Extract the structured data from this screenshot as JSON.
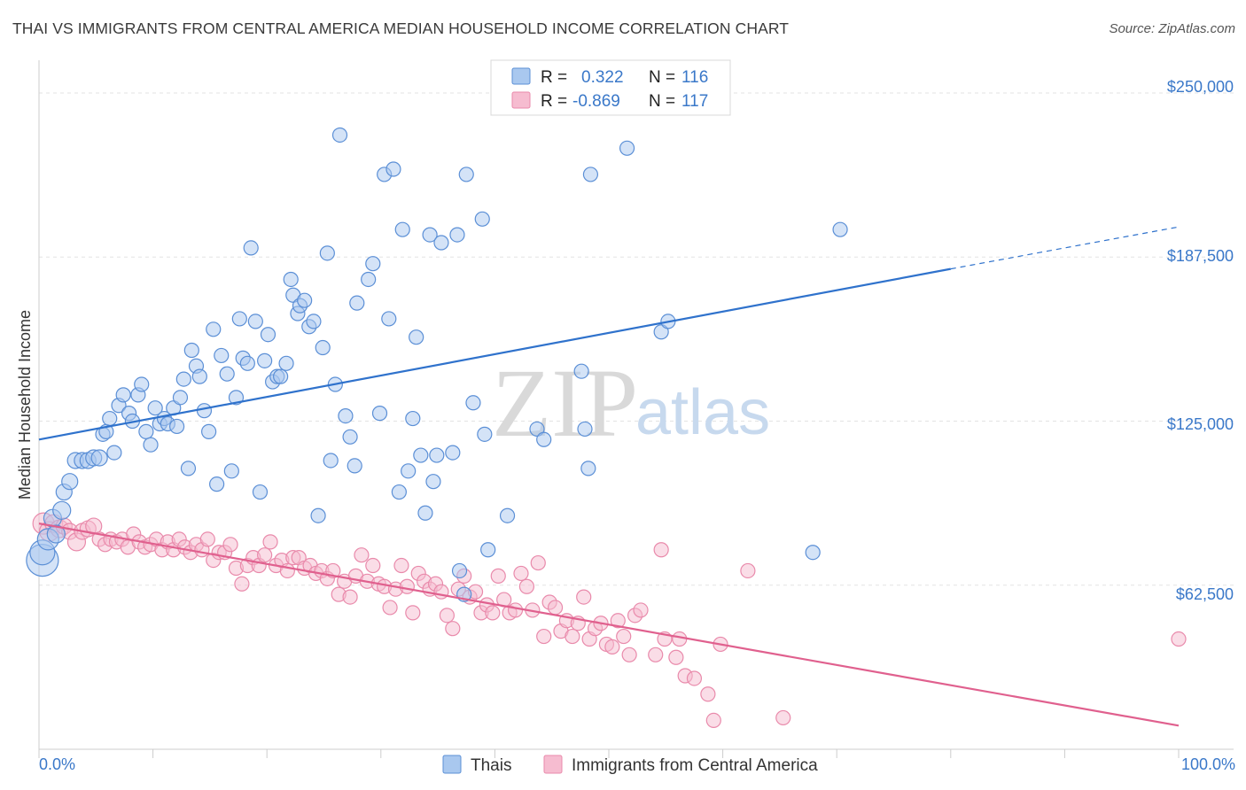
{
  "header": {
    "title": "THAI VS IMMIGRANTS FROM CENTRAL AMERICA MEDIAN HOUSEHOLD INCOME CORRELATION CHART",
    "source": "Source: ZipAtlas.com"
  },
  "legend_box": {
    "rows": [
      {
        "r_label": "R =",
        "r_value": "0.322",
        "n_label": "N =",
        "n_value": "116"
      },
      {
        "r_label": "R =",
        "r_value": "-0.869",
        "n_label": "N =",
        "n_value": "117"
      }
    ]
  },
  "watermark": {
    "part1": "ZIP",
    "part2": "atlas"
  },
  "colors": {
    "thais_fill": "#a9c8ef",
    "thais_stroke": "#5b8fd6",
    "thais_line": "#2f72cc",
    "ca_fill": "#f6bcd0",
    "ca_stroke": "#e98aab",
    "ca_line": "#e0608e"
  },
  "chart_data": {
    "type": "scatter",
    "title": "THAI VS IMMIGRANTS FROM CENTRAL AMERICA MEDIAN HOUSEHOLD INCOME CORRELATION CHART",
    "xlabel": "",
    "ylabel": "Median Household Income",
    "xlim": [
      0,
      100
    ],
    "ylim": [
      0,
      262500
    ],
    "x_tick_labels": [
      "0.0%",
      "100.0%"
    ],
    "y_ticks": [
      62500,
      125000,
      187500,
      250000
    ],
    "y_tick_labels": [
      "$62,500",
      "$125,000",
      "$187,500",
      "$250,000"
    ],
    "grid": "horizontal dashed",
    "legend_position": "bottom-center",
    "series": [
      {
        "name": "Thais",
        "r": 0.322,
        "n": 116,
        "trend": {
          "x0": 0,
          "y0": 118000,
          "x1": 80,
          "y1": 183000,
          "dashed_to_x": 100,
          "dashed_to_y": 199000
        },
        "points": [
          [
            0.3,
            72000,
            18
          ],
          [
            0.3,
            75000,
            14
          ],
          [
            0.8,
            80000,
            12
          ],
          [
            1.2,
            88000,
            10
          ],
          [
            1.5,
            82000,
            10
          ],
          [
            2.0,
            91000,
            10
          ],
          [
            2.2,
            98000,
            9
          ],
          [
            2.7,
            102000,
            9
          ],
          [
            3.2,
            110000,
            9
          ],
          [
            3.8,
            110000,
            9
          ],
          [
            4.3,
            110000,
            9
          ],
          [
            4.8,
            111000,
            9
          ],
          [
            5.3,
            111000,
            9
          ],
          [
            5.6,
            120000,
            8
          ],
          [
            5.9,
            121000,
            8
          ],
          [
            6.2,
            126000,
            8
          ],
          [
            6.6,
            113000,
            8
          ],
          [
            7.0,
            131000,
            8
          ],
          [
            7.4,
            135000,
            8
          ],
          [
            7.9,
            128000,
            8
          ],
          [
            8.2,
            125000,
            8
          ],
          [
            8.7,
            135000,
            8
          ],
          [
            9.0,
            139000,
            8
          ],
          [
            9.4,
            121000,
            8
          ],
          [
            9.8,
            116000,
            8
          ],
          [
            10.2,
            130000,
            8
          ],
          [
            10.6,
            124000,
            8
          ],
          [
            11.0,
            126000,
            8
          ],
          [
            11.3,
            124000,
            8
          ],
          [
            11.8,
            130000,
            8
          ],
          [
            12.1,
            123000,
            8
          ],
          [
            12.4,
            134000,
            8
          ],
          [
            12.7,
            141000,
            8
          ],
          [
            13.1,
            107000,
            8
          ],
          [
            13.4,
            152000,
            8
          ],
          [
            13.8,
            146000,
            8
          ],
          [
            14.1,
            142000,
            8
          ],
          [
            14.5,
            129000,
            8
          ],
          [
            14.9,
            121000,
            8
          ],
          [
            15.3,
            160000,
            8
          ],
          [
            15.6,
            101000,
            8
          ],
          [
            16.0,
            150000,
            8
          ],
          [
            16.5,
            143000,
            8
          ],
          [
            16.9,
            106000,
            8
          ],
          [
            17.3,
            134000,
            8
          ],
          [
            17.6,
            164000,
            8
          ],
          [
            17.9,
            149000,
            8
          ],
          [
            18.3,
            147000,
            8
          ],
          [
            18.6,
            191000,
            8
          ],
          [
            19.0,
            163000,
            8
          ],
          [
            19.4,
            98000,
            8
          ],
          [
            19.8,
            148000,
            8
          ],
          [
            20.1,
            158000,
            8
          ],
          [
            20.5,
            140000,
            8
          ],
          [
            20.9,
            142000,
            8
          ],
          [
            21.2,
            142000,
            8
          ],
          [
            21.7,
            147000,
            8
          ],
          [
            22.1,
            179000,
            8
          ],
          [
            22.3,
            173000,
            8
          ],
          [
            22.7,
            166000,
            8
          ],
          [
            22.9,
            169000,
            8
          ],
          [
            23.3,
            171000,
            8
          ],
          [
            23.7,
            161000,
            8
          ],
          [
            24.1,
            163000,
            8
          ],
          [
            24.5,
            89000,
            8
          ],
          [
            24.9,
            153000,
            8
          ],
          [
            25.3,
            189000,
            8
          ],
          [
            25.6,
            110000,
            8
          ],
          [
            26.0,
            139000,
            8
          ],
          [
            26.4,
            234000,
            8
          ],
          [
            26.9,
            127000,
            8
          ],
          [
            27.3,
            119000,
            8
          ],
          [
            27.7,
            108000,
            8
          ],
          [
            27.9,
            170000,
            8
          ],
          [
            28.9,
            179000,
            8
          ],
          [
            29.3,
            185000,
            8
          ],
          [
            29.9,
            128000,
            8
          ],
          [
            30.3,
            219000,
            8
          ],
          [
            30.7,
            164000,
            8
          ],
          [
            31.1,
            221000,
            8
          ],
          [
            31.6,
            98000,
            8
          ],
          [
            31.9,
            198000,
            8
          ],
          [
            32.4,
            106000,
            8
          ],
          [
            32.8,
            126000,
            8
          ],
          [
            33.1,
            157000,
            8
          ],
          [
            33.5,
            112000,
            8
          ],
          [
            33.9,
            90000,
            8
          ],
          [
            34.3,
            196000,
            8
          ],
          [
            34.6,
            102000,
            8
          ],
          [
            34.9,
            112000,
            8
          ],
          [
            35.3,
            193000,
            8
          ],
          [
            36.3,
            113000,
            8
          ],
          [
            36.7,
            196000,
            8
          ],
          [
            36.9,
            68000,
            8
          ],
          [
            37.3,
            59000,
            8
          ],
          [
            37.5,
            219000,
            8
          ],
          [
            38.1,
            132000,
            8
          ],
          [
            38.9,
            202000,
            8
          ],
          [
            39.1,
            120000,
            8
          ],
          [
            39.4,
            76000,
            8
          ],
          [
            41.1,
            89000,
            8
          ],
          [
            43.7,
            122000,
            8
          ],
          [
            44.3,
            118000,
            8
          ],
          [
            47.6,
            144000,
            8
          ],
          [
            47.9,
            122000,
            8
          ],
          [
            48.2,
            107000,
            8
          ],
          [
            48.4,
            219000,
            8
          ],
          [
            51.6,
            229000,
            8
          ],
          [
            54.6,
            159000,
            8
          ],
          [
            55.2,
            163000,
            8
          ],
          [
            67.9,
            75000,
            8
          ],
          [
            70.3,
            198000,
            8
          ]
        ]
      },
      {
        "name": "Immigrants from Central America",
        "r": -0.869,
        "n": 117,
        "trend": {
          "x0": 0,
          "y0": 86000,
          "x1": 100,
          "y1": 9000
        },
        "points": [
          [
            0.4,
            86000,
            12
          ],
          [
            0.9,
            83000,
            11
          ],
          [
            1.3,
            86000,
            10
          ],
          [
            1.8,
            84000,
            10
          ],
          [
            2.2,
            85000,
            9
          ],
          [
            2.7,
            83000,
            9
          ],
          [
            3.3,
            79000,
            10
          ],
          [
            3.8,
            83000,
            9
          ],
          [
            4.3,
            84000,
            9
          ],
          [
            4.8,
            85000,
            9
          ],
          [
            5.3,
            80000,
            8
          ],
          [
            5.8,
            78000,
            8
          ],
          [
            6.3,
            80000,
            8
          ],
          [
            6.8,
            79000,
            8
          ],
          [
            7.3,
            80000,
            8
          ],
          [
            7.8,
            77000,
            8
          ],
          [
            8.3,
            82000,
            8
          ],
          [
            8.8,
            79000,
            8
          ],
          [
            9.3,
            77000,
            8
          ],
          [
            9.8,
            78000,
            8
          ],
          [
            10.3,
            80000,
            8
          ],
          [
            10.8,
            76000,
            8
          ],
          [
            11.3,
            79000,
            8
          ],
          [
            11.8,
            76000,
            8
          ],
          [
            12.3,
            80000,
            8
          ],
          [
            12.8,
            77000,
            8
          ],
          [
            13.3,
            75000,
            8
          ],
          [
            13.8,
            78000,
            8
          ],
          [
            14.3,
            76000,
            8
          ],
          [
            14.8,
            80000,
            8
          ],
          [
            15.3,
            72000,
            8
          ],
          [
            15.8,
            75000,
            8
          ],
          [
            16.3,
            75000,
            8
          ],
          [
            16.8,
            78000,
            8
          ],
          [
            17.3,
            69000,
            8
          ],
          [
            17.8,
            63000,
            8
          ],
          [
            18.3,
            70000,
            8
          ],
          [
            18.8,
            73000,
            8
          ],
          [
            19.3,
            70000,
            8
          ],
          [
            19.8,
            74000,
            8
          ],
          [
            20.3,
            79000,
            8
          ],
          [
            20.8,
            70000,
            8
          ],
          [
            21.3,
            72000,
            8
          ],
          [
            21.8,
            68000,
            8
          ],
          [
            22.3,
            73000,
            8
          ],
          [
            22.8,
            73000,
            8
          ],
          [
            23.3,
            69000,
            8
          ],
          [
            23.8,
            70000,
            8
          ],
          [
            24.3,
            67000,
            8
          ],
          [
            24.8,
            68000,
            8
          ],
          [
            25.3,
            65000,
            8
          ],
          [
            25.8,
            68000,
            8
          ],
          [
            26.3,
            59000,
            8
          ],
          [
            26.8,
            64000,
            8
          ],
          [
            27.3,
            58000,
            8
          ],
          [
            27.8,
            66000,
            8
          ],
          [
            28.3,
            74000,
            8
          ],
          [
            28.8,
            64000,
            8
          ],
          [
            29.3,
            70000,
            8
          ],
          [
            29.8,
            63000,
            8
          ],
          [
            30.3,
            62000,
            8
          ],
          [
            30.8,
            54000,
            8
          ],
          [
            31.3,
            61000,
            8
          ],
          [
            31.8,
            70000,
            8
          ],
          [
            32.3,
            62000,
            8
          ],
          [
            32.8,
            52000,
            8
          ],
          [
            33.3,
            67000,
            8
          ],
          [
            33.8,
            64000,
            8
          ],
          [
            34.3,
            61000,
            8
          ],
          [
            34.8,
            63000,
            8
          ],
          [
            35.3,
            60000,
            8
          ],
          [
            35.8,
            51000,
            8
          ],
          [
            36.3,
            46000,
            8
          ],
          [
            36.8,
            61000,
            8
          ],
          [
            37.3,
            66000,
            8
          ],
          [
            37.8,
            58000,
            8
          ],
          [
            38.3,
            60000,
            8
          ],
          [
            38.8,
            52000,
            8
          ],
          [
            39.3,
            55000,
            8
          ],
          [
            39.8,
            52000,
            8
          ],
          [
            40.3,
            66000,
            8
          ],
          [
            40.8,
            57000,
            8
          ],
          [
            41.3,
            52000,
            8
          ],
          [
            41.8,
            53000,
            8
          ],
          [
            42.3,
            67000,
            8
          ],
          [
            42.8,
            62000,
            8
          ],
          [
            43.3,
            53000,
            8
          ],
          [
            43.8,
            71000,
            8
          ],
          [
            44.3,
            43000,
            8
          ],
          [
            44.8,
            56000,
            8
          ],
          [
            45.3,
            54000,
            8
          ],
          [
            45.8,
            45000,
            8
          ],
          [
            46.3,
            49000,
            8
          ],
          [
            46.8,
            43000,
            8
          ],
          [
            47.3,
            48000,
            8
          ],
          [
            47.8,
            58000,
            8
          ],
          [
            48.3,
            42000,
            8
          ],
          [
            48.8,
            46000,
            8
          ],
          [
            49.3,
            48000,
            8
          ],
          [
            49.8,
            40000,
            8
          ],
          [
            50.3,
            39000,
            8
          ],
          [
            50.8,
            49000,
            8
          ],
          [
            51.3,
            43000,
            8
          ],
          [
            51.8,
            36000,
            8
          ],
          [
            52.3,
            51000,
            8
          ],
          [
            52.8,
            53000,
            8
          ],
          [
            54.1,
            36000,
            8
          ],
          [
            54.6,
            76000,
            8
          ],
          [
            54.9,
            42000,
            8
          ],
          [
            55.9,
            35000,
            8
          ],
          [
            56.2,
            42000,
            8
          ],
          [
            56.7,
            28000,
            8
          ],
          [
            57.5,
            27000,
            8
          ],
          [
            58.7,
            21000,
            8
          ],
          [
            59.2,
            11000,
            8
          ],
          [
            59.8,
            40000,
            8
          ],
          [
            62.2,
            68000,
            8
          ],
          [
            65.3,
            12000,
            8
          ],
          [
            100.0,
            42000,
            8
          ]
        ]
      }
    ]
  }
}
